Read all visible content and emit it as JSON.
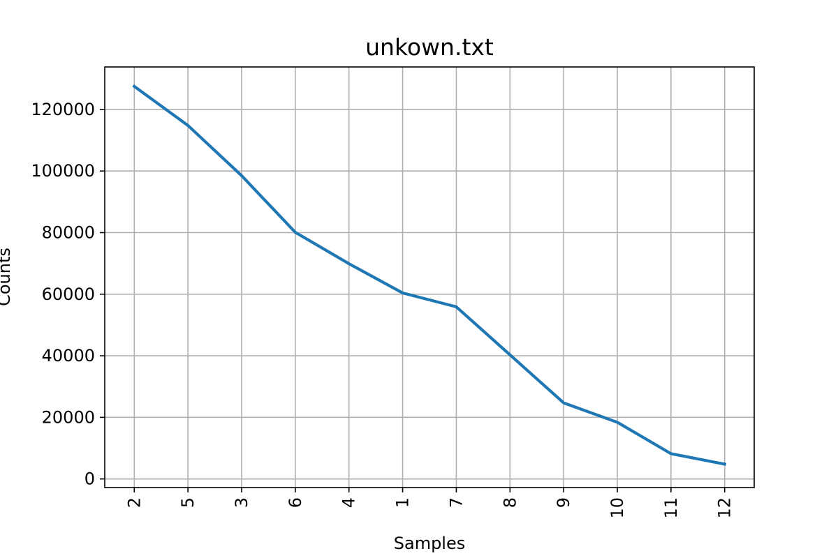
{
  "chart_data": {
    "type": "line",
    "title": "unkown.txt",
    "xlabel": "Samples",
    "ylabel": "Counts",
    "categories": [
      "2",
      "5",
      "3",
      "6",
      "4",
      "1",
      "7",
      "8",
      "9",
      "10",
      "11",
      "12"
    ],
    "series": [
      {
        "values": [
          127500,
          114800,
          98500,
          80100,
          69900,
          60400,
          55900,
          40300,
          24700,
          18400,
          8200,
          4800
        ],
        "color": "#1f77b4"
      }
    ],
    "ylim": [
      -2800,
      133800
    ],
    "yticks": [
      0,
      20000,
      40000,
      60000,
      80000,
      100000,
      120000
    ],
    "grid": true,
    "legend": "none"
  }
}
